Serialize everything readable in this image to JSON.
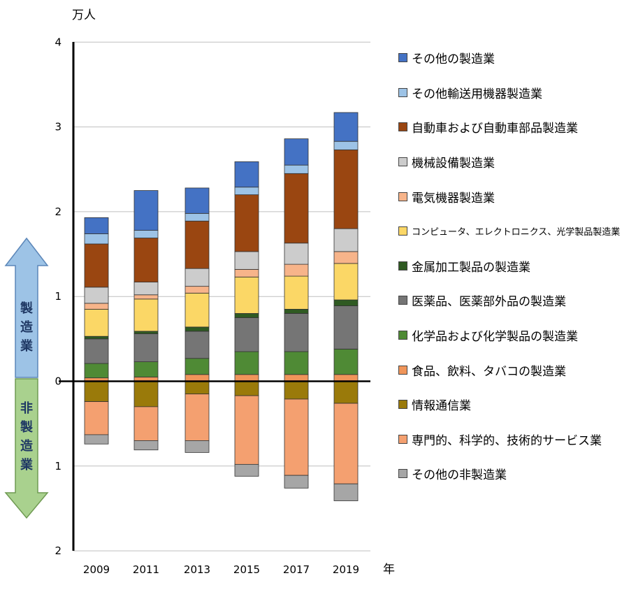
{
  "chart_data": {
    "type": "bar",
    "stacked": true,
    "y_unit": "万人",
    "x_unit": "年",
    "categories": [
      "2009",
      "2011",
      "2013",
      "2015",
      "2017",
      "2019"
    ],
    "y_ticks_up": [
      "4",
      "3",
      "2",
      "1",
      "0"
    ],
    "y_ticks_down": [
      "1",
      "2"
    ],
    "ylim": [
      -2,
      4
    ],
    "manufacturing": {
      "arrow_label": "製造業",
      "series": [
        {
          "name": "食品、飲料、タバコの製造業",
          "color": "#f0955a",
          "values": [
            0.04,
            0.05,
            0.08,
            0.08,
            0.08,
            0.08
          ]
        },
        {
          "name": "化学品および化学製品の製造業",
          "color": "#4f8a35",
          "values": [
            0.17,
            0.18,
            0.19,
            0.27,
            0.27,
            0.3
          ]
        },
        {
          "name": "医薬品、医薬部外品の製造業",
          "color": "#757575",
          "values": [
            0.29,
            0.33,
            0.32,
            0.4,
            0.45,
            0.51
          ]
        },
        {
          "name": "金属加工製品の製造業",
          "color": "#2f5a22",
          "values": [
            0.03,
            0.03,
            0.05,
            0.05,
            0.05,
            0.07
          ]
        },
        {
          "name": "コンピュータ、エレクトロニクス、光学製品製造業",
          "color": "#fbd766",
          "values": [
            0.32,
            0.38,
            0.4,
            0.43,
            0.39,
            0.43
          ]
        },
        {
          "name": "電気機器製造業",
          "color": "#f7b48a",
          "values": [
            0.07,
            0.05,
            0.08,
            0.09,
            0.14,
            0.14
          ]
        },
        {
          "name": "機械設備製造業",
          "color": "#cccccc",
          "values": [
            0.19,
            0.15,
            0.21,
            0.21,
            0.25,
            0.27
          ]
        },
        {
          "name": "自動車および自動車部品製造業",
          "color": "#9a4611",
          "values": [
            0.51,
            0.52,
            0.56,
            0.67,
            0.82,
            0.93
          ]
        },
        {
          "name": "その他輸送用機器製造業",
          "color": "#9dc3e6",
          "values": [
            0.12,
            0.09,
            0.09,
            0.09,
            0.1,
            0.1
          ]
        },
        {
          "name": "その他の製造業",
          "color": "#4472c4",
          "values": [
            0.19,
            0.47,
            0.3,
            0.3,
            0.31,
            0.34
          ]
        }
      ]
    },
    "non_manufacturing": {
      "arrow_label": "非製造業",
      "series": [
        {
          "name": "情報通信業",
          "color": "#9a7a0a",
          "values": [
            0.24,
            0.3,
            0.15,
            0.17,
            0.21,
            0.26
          ]
        },
        {
          "name": "専門的、科学的、技術的サービス業",
          "color": "#f4a070",
          "values": [
            0.39,
            0.4,
            0.55,
            0.81,
            0.9,
            0.95
          ]
        },
        {
          "name": "その他の非製造業",
          "color": "#a6a6a6",
          "values": [
            0.11,
            0.11,
            0.14,
            0.14,
            0.15,
            0.2
          ]
        }
      ]
    },
    "legend": [
      "その他の製造業",
      "その他輸送用機器製造業",
      "自動車および自動車部品製造業",
      "機械設備製造業",
      "電気機器製造業",
      "コンピュータ、エレクトロニクス、光学製品製造業",
      "金属加工製品の製造業",
      "医薬品、医薬部外品の製造業",
      "化学品および化学製品の製造業",
      "食品、飲料、タバコの製造業",
      "情報通信業",
      "専門的、科学的、技術的サービス業",
      "その他の非製造業"
    ],
    "legend_position": "right",
    "grid": true
  }
}
